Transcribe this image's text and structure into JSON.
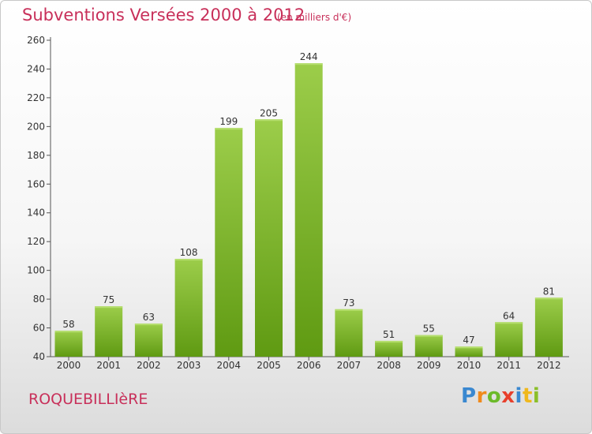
{
  "header": {
    "title": "Subventions Versées 2000 à 2012",
    "subtitle": "(en milliers d'€)"
  },
  "footer": {
    "place": "ROQUEBILLIèRE",
    "logo_letters": [
      "P",
      "r",
      "o",
      "x",
      "i",
      "t",
      "i"
    ]
  },
  "colors": {
    "accent": "#c8305a",
    "bar_top": "#9ccd4a",
    "bar_bottom": "#5f9a12"
  },
  "chart_data": {
    "type": "bar",
    "title": "Subventions Versées 2000 à 2012",
    "subtitle": "(en milliers d'€)",
    "xlabel": "",
    "ylabel": "",
    "categories": [
      "2000",
      "2001",
      "2002",
      "2003",
      "2004",
      "2005",
      "2006",
      "2007",
      "2008",
      "2009",
      "2010",
      "2011",
      "2012"
    ],
    "values": [
      58,
      75,
      63,
      108,
      199,
      205,
      244,
      73,
      51,
      55,
      47,
      64,
      81
    ],
    "ylim": [
      40,
      260
    ],
    "yticks": [
      40,
      60,
      80,
      100,
      120,
      140,
      160,
      180,
      200,
      220,
      240,
      260
    ],
    "grid": false,
    "legend": "none"
  }
}
